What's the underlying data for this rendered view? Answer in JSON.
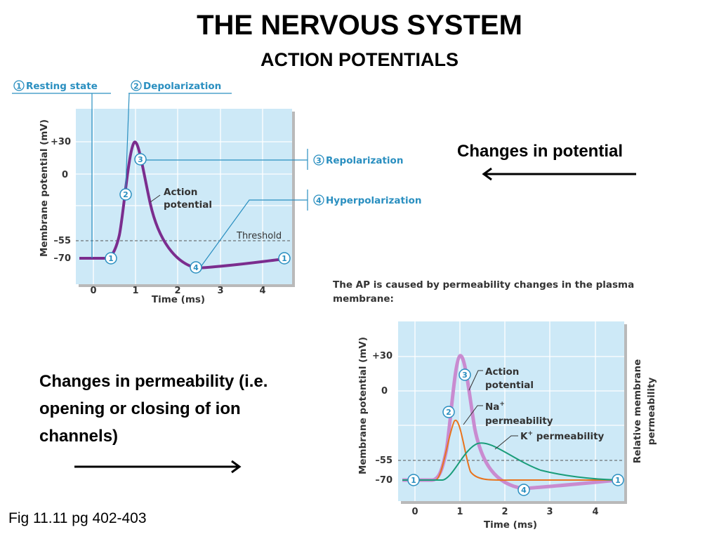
{
  "slide": {
    "title": "THE NERVOUS SYSTEM",
    "subtitle": "ACTION POTENTIALS",
    "note_potential": "Changes in potential",
    "note_permeability": "Changes in permeability (i.e. opening or closing of ion channels)",
    "caption": "Fig 11.11 pg 402-403"
  },
  "figure1": {
    "y_label": "Membrane potential (mV)",
    "x_label": "Time (ms)",
    "y_ticks": [
      "+30",
      "0",
      "–55",
      "–70"
    ],
    "x_ticks": [
      "0",
      "1",
      "2",
      "3",
      "4"
    ],
    "curve_label_1": "Action",
    "curve_label_2": "potential",
    "threshold_label": "Threshold",
    "stages": [
      {
        "num": "1",
        "label": "Resting state"
      },
      {
        "num": "2",
        "label": "Depolarization"
      },
      {
        "num": "3",
        "label": "Repolarization"
      },
      {
        "num": "4",
        "label": "Hyperpolarization"
      }
    ],
    "colors": {
      "plot_bg": "#cde9f7",
      "curve": "#7b2d8e",
      "callout": "#2a8fc0"
    }
  },
  "figure2": {
    "caption": "The AP is caused by permeability changes in the plasma membrane:",
    "y_label": "Membrane potential (mV)",
    "y2_label_1": "Relative membrane",
    "y2_label_2": "permeability",
    "x_label": "Time (ms)",
    "y_ticks": [
      "+30",
      "0",
      "–55",
      "–70"
    ],
    "x_ticks": [
      "0",
      "1",
      "2",
      "3",
      "4"
    ],
    "label_ap_1": "Action",
    "label_ap_2": "potential",
    "label_na_1": "Na",
    "label_na_sup": "+",
    "label_na_2": "permeability",
    "label_k_main": "K",
    "label_k_sup": "+",
    "label_k_rest": " permeability",
    "markers": [
      "1",
      "2",
      "3",
      "4",
      "1"
    ],
    "colors": {
      "plot_bg": "#cde9f7",
      "ap_curve": "#c98bd0",
      "na_curve": "#e8741e",
      "k_curve": "#1a9d7a"
    }
  }
}
